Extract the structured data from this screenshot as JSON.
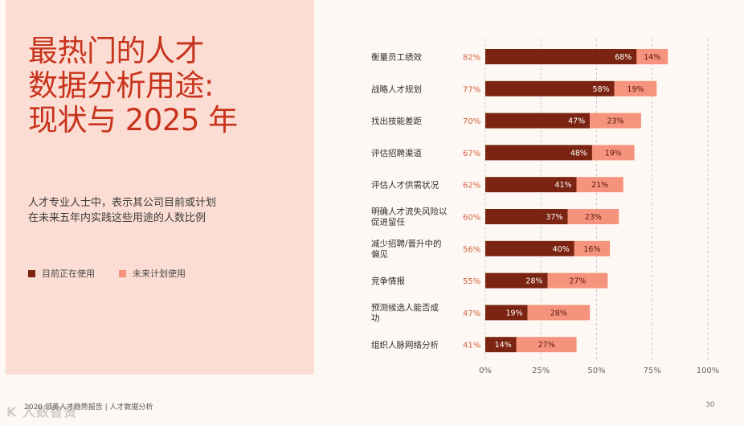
{
  "panel": {
    "title_lines": [
      "最热门的人才",
      "数据分析用途:",
      "现状与 2025 年"
    ],
    "subtitle_lines": [
      "人才专业人士中，表示其公司目前或计划",
      "在未来五年内实践这些用途的人数比例"
    ]
  },
  "legend": {
    "current": "目前正在使用",
    "future": "未来计划使用"
  },
  "colors": {
    "current": "#7b2411",
    "future": "#f5937c",
    "total_label": "#d4603e",
    "title": "#c8331d"
  },
  "footer": {
    "text": "2020 领英人才趋势报告 | 人才数据分析",
    "page": "30",
    "watermark": "K 人数智贤"
  },
  "chart_data": {
    "type": "bar",
    "orientation": "horizontal",
    "stacked": true,
    "categories": [
      [
        "衡量员工绩效"
      ],
      [
        "战略人才规划"
      ],
      [
        "找出技能差距"
      ],
      [
        "评估招聘渠道"
      ],
      [
        "评估人才供需状况"
      ],
      [
        "明确人才流失风险以",
        "促进留任"
      ],
      [
        "减少招聘/晋升中的",
        "偏见"
      ],
      [
        "竞争情报"
      ],
      [
        "预测候选人能否成",
        "功"
      ],
      [
        "组织人脉网络分析"
      ]
    ],
    "totals": [
      "82%",
      "77%",
      "70%",
      "67%",
      "62%",
      "60%",
      "56%",
      "55%",
      "47%",
      "41%"
    ],
    "series": [
      {
        "name": "目前正在使用",
        "values": [
          68,
          58,
          47,
          48,
          41,
          37,
          40,
          28,
          19,
          14
        ],
        "labels": [
          "68%",
          "58%",
          "47%",
          "48%",
          "41%",
          "37%",
          "40%",
          "28%",
          "19%",
          "14%"
        ]
      },
      {
        "name": "未来计划使用",
        "values": [
          14,
          19,
          23,
          19,
          21,
          23,
          16,
          27,
          28,
          27
        ],
        "labels": [
          "14%",
          "19%",
          "23%",
          "19%",
          "21%",
          "23%",
          "16%",
          "27%",
          "28%",
          "27%"
        ]
      }
    ],
    "xlim": [
      0,
      100
    ],
    "xticks": [
      0,
      25,
      50,
      75,
      100
    ],
    "xtick_labels": [
      "0%",
      "25%",
      "50%",
      "75%",
      "100%"
    ],
    "grid": "vertical-dashed",
    "legend_position": "left-middle"
  }
}
